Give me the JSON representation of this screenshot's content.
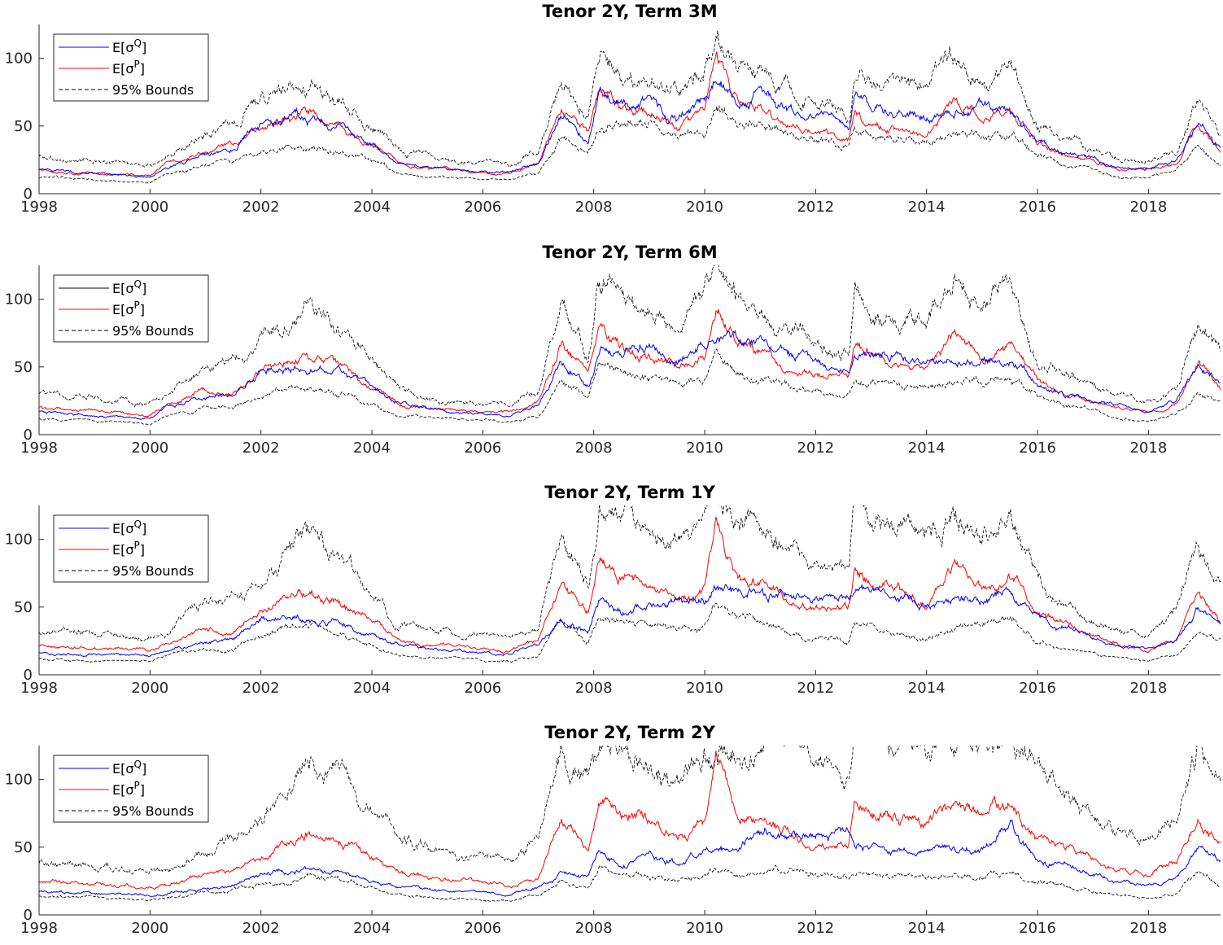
{
  "figure": {
    "panels": [
      {
        "title": "Tenor 2Y, Term 3M"
      },
      {
        "title": "Tenor 2Y, Term 6M"
      },
      {
        "title": "Tenor 2Y, Term 1Y"
      },
      {
        "title": "Tenor 2Y, Term 2Y"
      }
    ]
  },
  "chart_data": [
    {
      "type": "line",
      "title": "Tenor 2Y, Term 3M",
      "xlabel": "",
      "ylabel": "",
      "xlim": [
        1998,
        2019.3
      ],
      "ylim": [
        0,
        125
      ],
      "xticks": [
        1998,
        2000,
        2002,
        2004,
        2006,
        2008,
        2010,
        2012,
        2014,
        2016,
        2018
      ],
      "yticks": [
        0,
        50,
        100
      ],
      "legend": {
        "placement": "top-left",
        "entries": [
          {
            "base": "E[σ",
            "sup": "Q",
            "close": "]"
          },
          {
            "base": "E[σ",
            "sup": "P",
            "close": "]"
          },
          {
            "base": "95% Bounds"
          }
        ]
      },
      "colors": {
        "sigmaQ": "#0000ff",
        "sigmaP": "#ff0000",
        "bounds": "#000000"
      },
      "x": [
        1998.0,
        1999.0,
        2000.0,
        2000.3,
        2001.0,
        2001.5,
        2002.0,
        2002.8,
        2003.5,
        2004.0,
        2004.5,
        2005.5,
        2006.5,
        2007.0,
        2007.4,
        2007.9,
        2008.1,
        2008.5,
        2009.0,
        2009.5,
        2010.0,
        2010.2,
        2010.6,
        2011.0,
        2011.5,
        2012.0,
        2012.6,
        2012.7,
        2013.0,
        2013.5,
        2014.0,
        2014.5,
        2015.0,
        2015.5,
        2016.0,
        2016.5,
        2017.0,
        2017.5,
        2018.0,
        2018.5,
        2018.9,
        2019.3
      ],
      "series": [
        {
          "key": "sigmaQ",
          "name": "E[σQ]",
          "values": [
            18,
            15,
            12,
            20,
            27,
            32,
            50,
            55,
            45,
            35,
            22,
            18,
            15,
            22,
            55,
            40,
            75,
            65,
            70,
            55,
            70,
            85,
            70,
            75,
            60,
            55,
            50,
            75,
            65,
            58,
            57,
            60,
            62,
            60,
            40,
            30,
            25,
            20,
            18,
            25,
            50,
            35
          ]
        },
        {
          "key": "sigmaP",
          "name": "E[σP]",
          "values": [
            19,
            15,
            13,
            22,
            30,
            36,
            52,
            62,
            45,
            35,
            22,
            17,
            15,
            22,
            62,
            45,
            80,
            65,
            62,
            50,
            60,
            100,
            65,
            60,
            50,
            45,
            40,
            62,
            52,
            48,
            42,
            68,
            55,
            62,
            38,
            28,
            23,
            18,
            18,
            22,
            55,
            30
          ]
        },
        {
          "key": "bounds_upper",
          "name": "95% Bounds upper",
          "values": [
            28,
            24,
            20,
            28,
            45,
            52,
            70,
            88,
            65,
            50,
            32,
            25,
            22,
            30,
            80,
            60,
            110,
            90,
            85,
            75,
            100,
            120,
            90,
            85,
            80,
            70,
            60,
            95,
            85,
            80,
            75,
            100,
            85,
            100,
            50,
            40,
            32,
            25,
            25,
            30,
            78,
            45
          ]
        },
        {
          "key": "bounds_lower",
          "name": "95% Bounds lower",
          "values": [
            12,
            10,
            8,
            15,
            20,
            22,
            30,
            35,
            30,
            25,
            15,
            12,
            10,
            15,
            40,
            30,
            50,
            50,
            50,
            40,
            45,
            70,
            50,
            50,
            45,
            40,
            35,
            50,
            45,
            40,
            38,
            45,
            42,
            45,
            30,
            22,
            18,
            12,
            12,
            18,
            35,
            20
          ]
        }
      ]
    },
    {
      "type": "line",
      "title": "Tenor 2Y, Term 6M",
      "xlabel": "",
      "ylabel": "",
      "xlim": [
        1998,
        2019.3
      ],
      "ylim": [
        0,
        125
      ],
      "xticks": [
        1998,
        2000,
        2002,
        2004,
        2006,
        2008,
        2010,
        2012,
        2014,
        2016,
        2018
      ],
      "yticks": [
        0,
        50,
        100
      ],
      "legend": {
        "placement": "top-left",
        "entries": [
          {
            "base": "E[σ",
            "sup": "Q",
            "close": "]"
          },
          {
            "base": "E[σ",
            "sup": "P",
            "close": "]"
          },
          {
            "base": "95% Bounds"
          }
        ]
      },
      "colors": {
        "sigmaQ": "#0000ff",
        "sigmaQ_legend": "#000000",
        "sigmaP": "#ff0000",
        "bounds": "#000000"
      },
      "x": [
        1998.0,
        1999.0,
        2000.0,
        2000.3,
        2001.0,
        2001.5,
        2002.0,
        2002.8,
        2003.5,
        2004.0,
        2004.5,
        2005.5,
        2006.5,
        2007.0,
        2007.4,
        2007.9,
        2008.1,
        2008.5,
        2009.0,
        2009.5,
        2010.0,
        2010.2,
        2010.6,
        2011.0,
        2011.5,
        2012.0,
        2012.6,
        2012.7,
        2013.0,
        2013.5,
        2014.0,
        2014.5,
        2015.0,
        2015.5,
        2016.0,
        2016.5,
        2017.0,
        2017.5,
        2018.0,
        2018.5,
        2018.9,
        2019.3
      ],
      "series": [
        {
          "key": "sigmaQ",
          "name": "E[σQ]",
          "values": [
            17,
            14,
            12,
            20,
            28,
            30,
            50,
            50,
            45,
            35,
            22,
            17,
            14,
            22,
            55,
            40,
            65,
            60,
            65,
            55,
            65,
            75,
            68,
            68,
            60,
            52,
            48,
            62,
            60,
            55,
            52,
            55,
            55,
            55,
            38,
            30,
            25,
            20,
            16,
            25,
            50,
            40
          ]
        },
        {
          "key": "sigmaP",
          "name": "E[σP]",
          "values": [
            20,
            18,
            15,
            22,
            33,
            30,
            47,
            60,
            48,
            35,
            22,
            18,
            16,
            24,
            65,
            45,
            78,
            65,
            60,
            50,
            60,
            100,
            65,
            58,
            48,
            45,
            42,
            65,
            60,
            50,
            45,
            72,
            55,
            65,
            40,
            30,
            25,
            20,
            16,
            22,
            55,
            35
          ]
        },
        {
          "key": "bounds_upper",
          "name": "95% Bounds upper",
          "values": [
            30,
            27,
            24,
            30,
            48,
            52,
            68,
            95,
            70,
            55,
            32,
            26,
            22,
            32,
            90,
            60,
            120,
            100,
            90,
            78,
            105,
            125,
            100,
            90,
            85,
            70,
            60,
            110,
            95,
            90,
            85,
            115,
            95,
            120,
            55,
            45,
            35,
            28,
            25,
            35,
            85,
            60
          ]
        },
        {
          "key": "bounds_lower",
          "name": "95% Bounds lower",
          "values": [
            12,
            10,
            8,
            14,
            20,
            20,
            30,
            35,
            30,
            22,
            14,
            12,
            10,
            14,
            40,
            28,
            50,
            48,
            42,
            38,
            40,
            65,
            45,
            40,
            35,
            30,
            28,
            40,
            38,
            35,
            32,
            40,
            38,
            42,
            28,
            22,
            18,
            12,
            10,
            15,
            30,
            25
          ]
        }
      ]
    },
    {
      "type": "line",
      "title": "Tenor 2Y, Term 1Y",
      "xlabel": "",
      "ylabel": "",
      "xlim": [
        1998,
        2019.3
      ],
      "ylim": [
        0,
        125
      ],
      "xticks": [
        1998,
        2000,
        2002,
        2004,
        2006,
        2008,
        2010,
        2012,
        2014,
        2016,
        2018
      ],
      "yticks": [
        0,
        50,
        100
      ],
      "legend": {
        "placement": "top-left",
        "entries": [
          {
            "base": "E[σ",
            "sup": "Q",
            "close": "]"
          },
          {
            "base": "E[σ",
            "sup": "P",
            "close": "]"
          },
          {
            "base": "95% Bounds"
          }
        ]
      },
      "colors": {
        "sigmaQ": "#0000ff",
        "sigmaP": "#ff0000",
        "bounds": "#000000"
      },
      "x": [
        1998.0,
        1999.0,
        2000.0,
        2000.3,
        2001.0,
        2001.5,
        2002.0,
        2002.8,
        2003.5,
        2004.0,
        2004.5,
        2005.5,
        2006.5,
        2007.0,
        2007.4,
        2007.9,
        2008.1,
        2008.5,
        2009.0,
        2009.5,
        2010.0,
        2010.2,
        2010.6,
        2011.0,
        2011.5,
        2012.0,
        2012.6,
        2012.7,
        2013.0,
        2013.5,
        2014.0,
        2014.5,
        2015.0,
        2015.5,
        2016.0,
        2016.5,
        2017.0,
        2017.5,
        2018.0,
        2018.5,
        2018.9,
        2019.3
      ],
      "series": [
        {
          "key": "sigmaQ",
          "name": "E[σQ]",
          "values": [
            17,
            15,
            14,
            18,
            25,
            28,
            40,
            42,
            38,
            30,
            22,
            17,
            15,
            22,
            42,
            35,
            55,
            45,
            52,
            55,
            58,
            65,
            62,
            62,
            58,
            55,
            58,
            65,
            62,
            58,
            50,
            55,
            55,
            60,
            42,
            35,
            28,
            22,
            18,
            25,
            50,
            35
          ]
        },
        {
          "key": "sigmaP",
          "name": "E[σP]",
          "values": [
            22,
            20,
            18,
            22,
            33,
            30,
            45,
            62,
            52,
            40,
            25,
            20,
            18,
            25,
            68,
            45,
            88,
            70,
            65,
            55,
            60,
            103,
            70,
            68,
            58,
            50,
            48,
            70,
            65,
            60,
            50,
            80,
            60,
            75,
            45,
            38,
            30,
            22,
            18,
            28,
            60,
            38
          ]
        },
        {
          "key": "bounds_upper",
          "name": "95% Bounds upper",
          "values": [
            32,
            30,
            28,
            32,
            55,
            55,
            68,
            100,
            78,
            62,
            38,
            30,
            26,
            35,
            110,
            65,
            125,
            125,
            110,
            95,
            110,
            125,
            115,
            105,
            95,
            80,
            75,
            125,
            110,
            105,
            100,
            125,
            110,
            125,
            70,
            55,
            42,
            32,
            28,
            45,
            100,
            75
          ]
        },
        {
          "key": "bounds_lower",
          "name": "95% Bounds lower",
          "values": [
            12,
            11,
            10,
            14,
            18,
            18,
            28,
            38,
            30,
            22,
            14,
            12,
            10,
            14,
            38,
            25,
            45,
            40,
            38,
            32,
            35,
            55,
            40,
            38,
            30,
            28,
            25,
            40,
            35,
            30,
            28,
            38,
            32,
            40,
            25,
            20,
            16,
            12,
            10,
            15,
            30,
            25
          ]
        }
      ]
    },
    {
      "type": "line",
      "title": "Tenor 2Y, Term 2Y",
      "xlabel": "",
      "ylabel": "",
      "xlim": [
        1998,
        2019.3
      ],
      "ylim": [
        0,
        125
      ],
      "xticks": [
        1998,
        2000,
        2002,
        2004,
        2006,
        2008,
        2010,
        2012,
        2014,
        2016,
        2018
      ],
      "yticks": [
        0,
        50,
        100
      ],
      "legend": {
        "placement": "top-left",
        "entries": [
          {
            "base": "E[σ",
            "sup": "Q",
            "close": "]"
          },
          {
            "base": "E[σ",
            "sup": "P",
            "close": "]"
          },
          {
            "base": "95% Bounds"
          }
        ]
      },
      "colors": {
        "sigmaQ": "#0000ff",
        "sigmaP": "#ff0000",
        "bounds": "#000000"
      },
      "x": [
        1998.0,
        1999.0,
        2000.0,
        2000.3,
        2001.0,
        2001.5,
        2002.0,
        2002.8,
        2003.5,
        2004.0,
        2004.5,
        2005.5,
        2006.5,
        2007.0,
        2007.4,
        2007.9,
        2008.1,
        2008.5,
        2009.0,
        2009.5,
        2010.0,
        2010.2,
        2010.6,
        2011.0,
        2011.5,
        2012.0,
        2012.6,
        2012.7,
        2013.0,
        2013.5,
        2014.0,
        2014.5,
        2015.0,
        2015.5,
        2016.0,
        2016.5,
        2017.0,
        2017.5,
        2018.0,
        2018.5,
        2018.9,
        2019.3
      ],
      "series": [
        {
          "key": "sigmaQ",
          "name": "E[σQ]",
          "values": [
            17,
            16,
            15,
            16,
            20,
            22,
            32,
            33,
            32,
            25,
            20,
            17,
            15,
            20,
            32,
            28,
            48,
            38,
            42,
            38,
            48,
            50,
            45,
            62,
            58,
            58,
            60,
            52,
            50,
            48,
            45,
            50,
            48,
            65,
            40,
            35,
            30,
            25,
            22,
            28,
            50,
            40
          ]
        },
        {
          "key": "sigmaP",
          "name": "E[σP]",
          "values": [
            25,
            22,
            21,
            22,
            30,
            32,
            42,
            62,
            52,
            42,
            32,
            25,
            22,
            28,
            72,
            50,
            92,
            80,
            70,
            55,
            65,
            107,
            70,
            72,
            62,
            50,
            48,
            82,
            75,
            70,
            68,
            85,
            75,
            80,
            55,
            48,
            40,
            32,
            28,
            40,
            70,
            50
          ]
        },
        {
          "key": "bounds_upper",
          "name": "95% Bounds upper",
          "values": [
            38,
            35,
            33,
            35,
            50,
            55,
            70,
            112,
            95,
            72,
            55,
            45,
            40,
            55,
            125,
            100,
            125,
            125,
            110,
            95,
            118,
            125,
            125,
            125,
            125,
            110,
            100,
            125,
            125,
            125,
            125,
            125,
            125,
            125,
            110,
            90,
            75,
            65,
            55,
            75,
            125,
            95
          ]
        },
        {
          "key": "bounds_lower",
          "name": "95% Bounds lower",
          "values": [
            14,
            13,
            12,
            13,
            16,
            17,
            22,
            28,
            28,
            20,
            15,
            12,
            10,
            14,
            25,
            20,
            32,
            28,
            30,
            26,
            32,
            35,
            30,
            35,
            32,
            30,
            28,
            32,
            30,
            28,
            25,
            30,
            28,
            35,
            25,
            20,
            17,
            14,
            12,
            16,
            30,
            22
          ]
        }
      ]
    }
  ]
}
